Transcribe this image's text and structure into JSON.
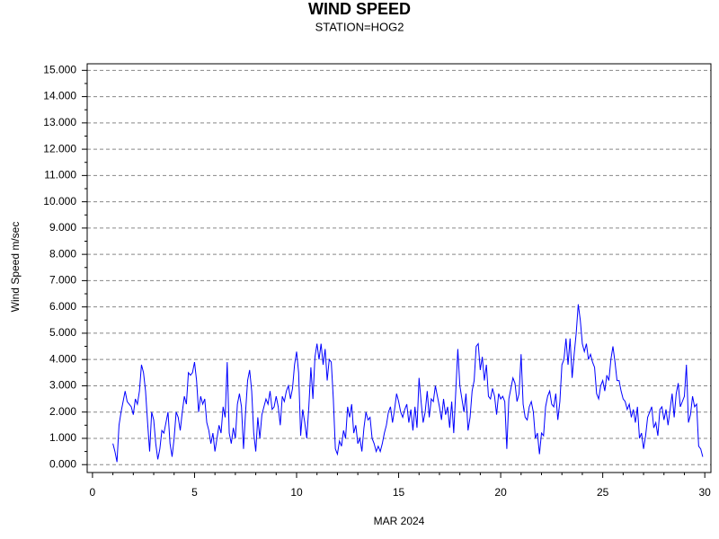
{
  "chart_data": {
    "type": "line",
    "title": "WIND SPEED",
    "subtitle": "STATION=HOG2",
    "y_label": "Wind Speed m/sec",
    "x_label": "MAR 2024",
    "xlim": [
      -0.26,
      30.3
    ],
    "ylim": [
      -0.3,
      15.25
    ],
    "xticks": [
      0,
      5,
      10,
      15,
      20,
      25,
      30
    ],
    "x_minor_ticks": [
      1,
      2,
      3,
      4,
      6,
      7,
      8,
      9,
      11,
      12,
      13,
      14,
      16,
      17,
      18,
      19,
      21,
      22,
      23,
      24,
      26,
      27,
      28,
      29
    ],
    "yticks": [
      {
        "value": 0,
        "label": "0.000"
      },
      {
        "value": 1,
        "label": "1.000"
      },
      {
        "value": 2,
        "label": "2.000"
      },
      {
        "value": 3,
        "label": "3.000"
      },
      {
        "value": 4,
        "label": "4.000"
      },
      {
        "value": 5,
        "label": "5.000"
      },
      {
        "value": 6,
        "label": "6.000"
      },
      {
        "value": 7,
        "label": "7.000"
      },
      {
        "value": 8,
        "label": "8.000"
      },
      {
        "value": 9,
        "label": "9.000"
      },
      {
        "value": 10,
        "label": "10.000"
      },
      {
        "value": 11,
        "label": "11.000"
      },
      {
        "value": 12,
        "label": "12.000"
      },
      {
        "value": 13,
        "label": "13.000"
      },
      {
        "value": 14,
        "label": "14.000"
      },
      {
        "value": 15,
        "label": "15.000"
      }
    ],
    "y_minor_ticks": [
      0.5,
      1.5,
      2.5,
      3.5,
      4.5,
      5.5,
      6.5,
      7.5,
      8.5,
      9.5,
      10.5,
      11.5,
      12.5,
      13.5,
      14.5
    ],
    "grid": true,
    "x": [
      1.0,
      1.1,
      1.2,
      1.3,
      1.4,
      1.5,
      1.6,
      1.7,
      1.8,
      1.9,
      2.0,
      2.1,
      2.2,
      2.3,
      2.4,
      2.5,
      2.6,
      2.7,
      2.8,
      2.9,
      3.0,
      3.1,
      3.2,
      3.3,
      3.4,
      3.5,
      3.6,
      3.7,
      3.8,
      3.9,
      4.0,
      4.1,
      4.2,
      4.3,
      4.4,
      4.5,
      4.6,
      4.7,
      4.8,
      4.9,
      5.0,
      5.1,
      5.2,
      5.3,
      5.4,
      5.5,
      5.6,
      5.7,
      5.8,
      5.9,
      6.0,
      6.1,
      6.2,
      6.3,
      6.4,
      6.5,
      6.6,
      6.7,
      6.8,
      6.9,
      7.0,
      7.1,
      7.2,
      7.3,
      7.4,
      7.5,
      7.6,
      7.7,
      7.8,
      7.9,
      8.0,
      8.1,
      8.2,
      8.3,
      8.4,
      8.5,
      8.6,
      8.7,
      8.8,
      8.9,
      9.0,
      9.1,
      9.2,
      9.3,
      9.4,
      9.5,
      9.6,
      9.7,
      9.8,
      9.9,
      10.0,
      10.1,
      10.2,
      10.3,
      10.4,
      10.5,
      10.6,
      10.7,
      10.8,
      10.9,
      11.0,
      11.1,
      11.2,
      11.3,
      11.4,
      11.5,
      11.6,
      11.7,
      11.8,
      11.9,
      12.0,
      12.1,
      12.2,
      12.3,
      12.4,
      12.5,
      12.6,
      12.7,
      12.8,
      12.9,
      13.0,
      13.1,
      13.2,
      13.3,
      13.4,
      13.5,
      13.6,
      13.7,
      13.8,
      13.9,
      14.0,
      14.1,
      14.2,
      14.3,
      14.4,
      14.5,
      14.6,
      14.7,
      14.8,
      14.9,
      15.0,
      15.1,
      15.2,
      15.3,
      15.4,
      15.5,
      15.6,
      15.7,
      15.8,
      15.9,
      16.0,
      16.1,
      16.2,
      16.3,
      16.4,
      16.5,
      16.6,
      16.7,
      16.8,
      16.9,
      17.0,
      17.1,
      17.2,
      17.3,
      17.4,
      17.5,
      17.6,
      17.7,
      17.8,
      17.9,
      18.0,
      18.1,
      18.2,
      18.3,
      18.4,
      18.5,
      18.6,
      18.7,
      18.8,
      18.9,
      19.0,
      19.1,
      19.2,
      19.3,
      19.4,
      19.5,
      19.6,
      19.7,
      19.8,
      19.9,
      20.0,
      20.1,
      20.2,
      20.3,
      20.4,
      20.5,
      20.6,
      20.7,
      20.8,
      20.9,
      21.0,
      21.1,
      21.2,
      21.3,
      21.4,
      21.5,
      21.6,
      21.7,
      21.8,
      21.9,
      22.0,
      22.1,
      22.2,
      22.3,
      22.4,
      22.5,
      22.6,
      22.7,
      22.8,
      22.9,
      23.0,
      23.1,
      23.2,
      23.3,
      23.4,
      23.5,
      23.6,
      23.7,
      23.8,
      23.9,
      24.0,
      24.1,
      24.2,
      24.3,
      24.4,
      24.5,
      24.6,
      24.7,
      24.8,
      24.9,
      25.0,
      25.1,
      25.2,
      25.3,
      25.4,
      25.5,
      25.6,
      25.7,
      25.8,
      25.9,
      26.0,
      26.1,
      26.2,
      26.3,
      26.4,
      26.5,
      26.6,
      26.7,
      26.8,
      26.9,
      27.0,
      27.1,
      27.2,
      27.3,
      27.4,
      27.5,
      27.6,
      27.7,
      27.8,
      27.9,
      28.0,
      28.1,
      28.2,
      28.3,
      28.4,
      28.5,
      28.6,
      28.7,
      28.8,
      28.9,
      29.0,
      29.1,
      29.2,
      29.3,
      29.4,
      29.5,
      29.6,
      29.7,
      29.8,
      29.9
    ],
    "series": [
      {
        "color": "#0000ff",
        "values": [
          0.8,
          0.5,
          0.1,
          1.5,
          2.0,
          2.4,
          2.8,
          2.4,
          2.3,
          2.2,
          1.9,
          2.5,
          2.3,
          2.8,
          3.8,
          3.5,
          2.8,
          1.6,
          0.5,
          2.0,
          1.7,
          0.8,
          0.2,
          0.6,
          1.3,
          1.2,
          1.6,
          2.0,
          0.8,
          0.3,
          1.0,
          2.0,
          1.8,
          1.3,
          2.0,
          2.6,
          2.3,
          3.5,
          3.4,
          3.5,
          3.9,
          3.2,
          2.0,
          2.6,
          2.3,
          2.5,
          1.6,
          1.3,
          0.8,
          1.2,
          0.5,
          1.0,
          1.5,
          1.2,
          2.2,
          1.8,
          3.9,
          1.2,
          0.8,
          1.4,
          1.0,
          2.3,
          2.7,
          2.2,
          0.6,
          2.0,
          3.2,
          3.6,
          2.8,
          1.2,
          0.5,
          1.8,
          1.0,
          1.9,
          2.2,
          2.5,
          2.3,
          2.8,
          2.1,
          2.2,
          2.6,
          2.2,
          1.5,
          2.6,
          2.4,
          2.8,
          3.0,
          2.5,
          2.9,
          3.8,
          4.3,
          3.5,
          1.1,
          2.1,
          1.6,
          1.0,
          2.2,
          3.7,
          2.5,
          4.1,
          4.6,
          4.0,
          4.6,
          3.8,
          4.4,
          3.2,
          4.0,
          3.9,
          2.5,
          0.6,
          0.4,
          0.9,
          0.7,
          1.3,
          1.0,
          2.2,
          1.8,
          2.3,
          1.2,
          1.5,
          0.8,
          1.0,
          0.5,
          1.4,
          2.0,
          1.7,
          1.8,
          1.0,
          0.8,
          0.5,
          0.7,
          0.5,
          0.8,
          1.2,
          1.5,
          2.0,
          2.2,
          1.6,
          2.1,
          2.7,
          2.4,
          2.0,
          1.8,
          2.1,
          2.3,
          1.6,
          2.1,
          1.3,
          2.2,
          1.4,
          3.3,
          2.4,
          1.6,
          2.0,
          2.8,
          1.8,
          2.5,
          2.4,
          3.0,
          2.6,
          2.2,
          1.7,
          2.5,
          1.9,
          2.2,
          1.4,
          2.4,
          1.2,
          2.8,
          4.4,
          3.0,
          2.5,
          2.0,
          2.7,
          1.3,
          1.8,
          2.8,
          3.2,
          4.5,
          4.6,
          3.6,
          4.1,
          3.2,
          3.8,
          2.6,
          2.5,
          2.9,
          2.6,
          1.9,
          2.7,
          2.5,
          2.6,
          2.4,
          0.6,
          2.5,
          2.9,
          3.3,
          3.1,
          2.4,
          2.7,
          4.2,
          2.3,
          1.8,
          1.7,
          2.2,
          2.4,
          2.0,
          1.0,
          1.2,
          0.4,
          1.2,
          1.1,
          2.2,
          2.6,
          2.8,
          2.3,
          2.2,
          2.7,
          1.7,
          2.4,
          3.8,
          4.0,
          4.8,
          3.8,
          4.8,
          3.3,
          4.2,
          5.0,
          6.1,
          5.5,
          4.6,
          4.3,
          4.6,
          4.0,
          4.2,
          3.9,
          3.7,
          2.7,
          2.5,
          3.0,
          3.2,
          2.8,
          3.4,
          3.2,
          4.0,
          4.5,
          3.9,
          3.2,
          3.2,
          2.8,
          2.5,
          2.4,
          2.1,
          2.3,
          1.8,
          2.1,
          1.6,
          2.2,
          1.0,
          1.2,
          0.6,
          1.1,
          1.8,
          2.0,
          2.2,
          1.4,
          1.6,
          1.1,
          2.1,
          2.2,
          1.7,
          2.1,
          1.5,
          2.1,
          2.7,
          1.8,
          2.7,
          3.1,
          2.2,
          2.4,
          2.6,
          3.8,
          1.6,
          1.9,
          2.6,
          2.2,
          2.3,
          0.7,
          0.6,
          0.3
        ]
      }
    ]
  }
}
